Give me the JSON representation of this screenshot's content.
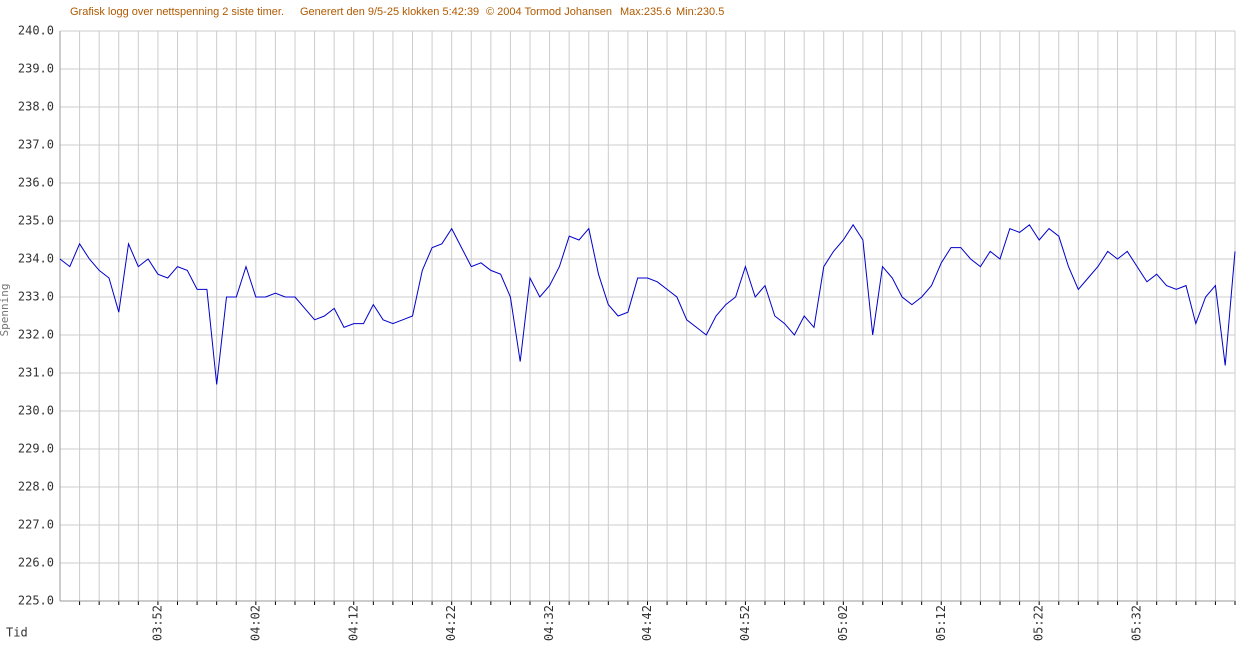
{
  "chart_data": {
    "type": "line",
    "title": "Grafisk logg over nettspenning 2 siste timer.",
    "annotations": [
      "Generert den 9/5-25 klokken 5:42:39",
      "© 2004 Tormod Johansen",
      "Max:235.6",
      "Min:230.5"
    ],
    "xlabel": "Tid",
    "ylabel": "Spenning",
    "categories": [
      null,
      null,
      null,
      null,
      null,
      null,
      null,
      null,
      null,
      null,
      "03:52",
      null,
      null,
      null,
      null,
      null,
      null,
      null,
      null,
      null,
      "04:02",
      null,
      null,
      null,
      null,
      null,
      null,
      null,
      null,
      null,
      "04:12",
      null,
      null,
      null,
      null,
      null,
      null,
      null,
      null,
      null,
      "04:22",
      null,
      null,
      null,
      null,
      null,
      null,
      null,
      null,
      null,
      "04:32",
      null,
      null,
      null,
      null,
      null,
      null,
      null,
      null,
      null,
      "04:42",
      null,
      null,
      null,
      null,
      null,
      null,
      null,
      null,
      null,
      "04:52",
      null,
      null,
      null,
      null,
      null,
      null,
      null,
      null,
      null,
      "05:02",
      null,
      null,
      null,
      null,
      null,
      null,
      null,
      null,
      null,
      "05:12",
      null,
      null,
      null,
      null,
      null,
      null,
      null,
      null,
      null,
      "05:22",
      null,
      null,
      null,
      null,
      null,
      null,
      null,
      null,
      null,
      "05:32",
      null,
      null,
      null,
      null,
      null,
      null,
      null,
      null,
      null,
      null
    ],
    "series": [
      {
        "name": "Spenning",
        "color": "#0000cc",
        "values": [
          234.0,
          233.8,
          234.4,
          234.0,
          233.7,
          233.5,
          232.6,
          234.4,
          233.8,
          234.0,
          233.6,
          233.5,
          233.8,
          233.7,
          233.2,
          233.2,
          230.7,
          233.0,
          233.0,
          233.8,
          233.0,
          233.0,
          233.1,
          233.0,
          233.0,
          232.7,
          232.4,
          232.5,
          232.7,
          232.2,
          232.3,
          232.3,
          232.8,
          232.4,
          232.3,
          232.4,
          232.5,
          233.7,
          234.3,
          234.4,
          234.8,
          234.3,
          233.8,
          233.9,
          233.7,
          233.6,
          233.0,
          231.3,
          233.5,
          233.0,
          233.3,
          233.8,
          234.6,
          234.5,
          234.8,
          233.6,
          232.8,
          232.5,
          232.6,
          233.5,
          233.5,
          233.4,
          233.2,
          233.0,
          232.4,
          232.2,
          232.0,
          232.5,
          232.8,
          233.0,
          233.8,
          233.0,
          233.3,
          232.5,
          232.3,
          232.0,
          232.5,
          232.2,
          233.8,
          234.2,
          234.5,
          234.9,
          234.5,
          232.0,
          233.8,
          233.5,
          233.0,
          232.8,
          233.0,
          233.3,
          233.9,
          234.3,
          234.3,
          234.0,
          233.8,
          234.2,
          234.0,
          234.8,
          234.7,
          234.9,
          234.5,
          234.8,
          234.6,
          233.8,
          233.2,
          233.5,
          233.8,
          234.2,
          234.0,
          234.2,
          233.8,
          233.4,
          233.6,
          233.3,
          233.2,
          233.3,
          232.3,
          233.0,
          233.3,
          231.2,
          234.2
        ]
      }
    ],
    "ylim": [
      225,
      240
    ],
    "yticks": [
      {
        "value": 225,
        "label": "225.0"
      },
      {
        "value": 226,
        "label": "226.0"
      },
      {
        "value": 227,
        "label": "227.0"
      },
      {
        "value": 228,
        "label": "228.0"
      },
      {
        "value": 229,
        "label": "229.0"
      },
      {
        "value": 230,
        "label": "230.0"
      },
      {
        "value": 231,
        "label": "231.0"
      },
      {
        "value": 232,
        "label": "232.0"
      },
      {
        "value": 233,
        "label": "233.0"
      },
      {
        "value": 234,
        "label": "234.0"
      },
      {
        "value": 235,
        "label": "235.0"
      },
      {
        "value": 236,
        "label": "236.0"
      },
      {
        "value": 237,
        "label": "237.0"
      },
      {
        "value": 238,
        "label": "238.0"
      },
      {
        "value": 239,
        "label": "239.0"
      },
      {
        "value": 240,
        "label": "240.0"
      }
    ],
    "grid": true,
    "text_color": "#b05a00"
  }
}
